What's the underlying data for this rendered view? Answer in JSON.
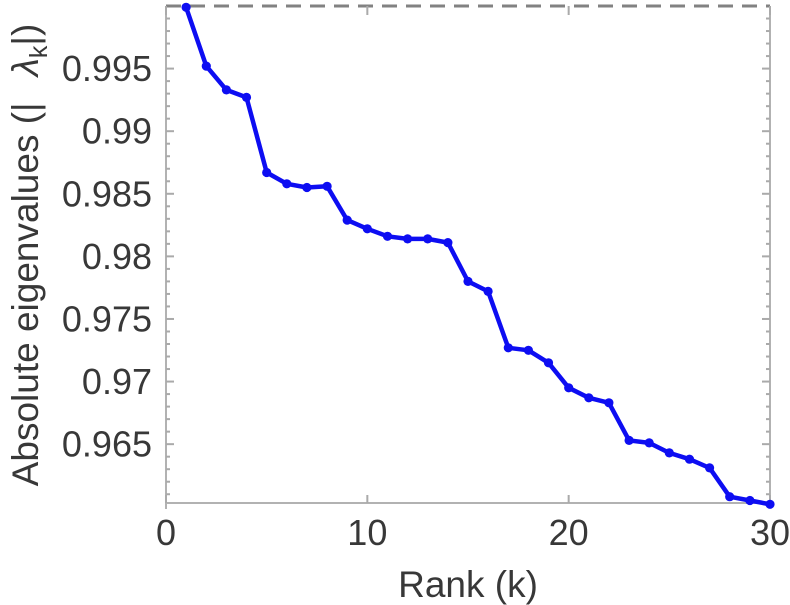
{
  "figure": {
    "background": "#ffffff"
  },
  "chart_data": {
    "type": "line",
    "title": "",
    "xlabel": "Rank (k)",
    "ylabel": "Absolute eigenvalues (| λk|)",
    "ylabel_parts": {
      "prefix": "Absolute eigenvalues (|",
      "symbol": "λ",
      "subscript": "k",
      "suffix": "|)"
    },
    "series": [
      {
        "name": "absolute-eigenvalues",
        "x": [
          1,
          2,
          3,
          4,
          5,
          6,
          7,
          8,
          9,
          10,
          11,
          12,
          13,
          14,
          15,
          16,
          17,
          18,
          19,
          20,
          21,
          22,
          23,
          24,
          25,
          26,
          27,
          28,
          29,
          30
        ],
        "y": [
          0.9999,
          0.9952,
          0.9933,
          0.9927,
          0.9867,
          0.9858,
          0.9855,
          0.9856,
          0.9829,
          0.9822,
          0.9816,
          0.9814,
          0.9814,
          0.9811,
          0.978,
          0.9772,
          0.9727,
          0.9725,
          0.9715,
          0.9695,
          0.9687,
          0.9683,
          0.9653,
          0.9651,
          0.9643,
          0.9638,
          0.9631,
          0.9608,
          0.9605,
          0.9602
        ]
      }
    ],
    "xlim": [
      0,
      30
    ],
    "ylim": [
      0.9603,
      1.0
    ],
    "xticks": [
      0,
      10,
      20,
      30
    ],
    "xtick_labels": [
      "0",
      "10",
      "20",
      "30"
    ],
    "yticks": [
      0.995,
      0.99,
      0.985,
      0.98,
      0.975,
      0.97,
      0.965
    ],
    "ytick_labels": [
      "0.995",
      "0.99",
      "0.985",
      "0.98",
      "0.975",
      "0.97",
      "0.965"
    ],
    "y_minor_step": 0.001,
    "grid": false,
    "legend": null,
    "reference_line": {
      "y": 1.0,
      "style": "dashed"
    },
    "colors": {
      "line": "#0d0df2",
      "marker": "#0d0df2",
      "axis": "#b2b2b2",
      "tick": "#aaaaaa",
      "text": "#383838",
      "reference": "#828282"
    }
  }
}
